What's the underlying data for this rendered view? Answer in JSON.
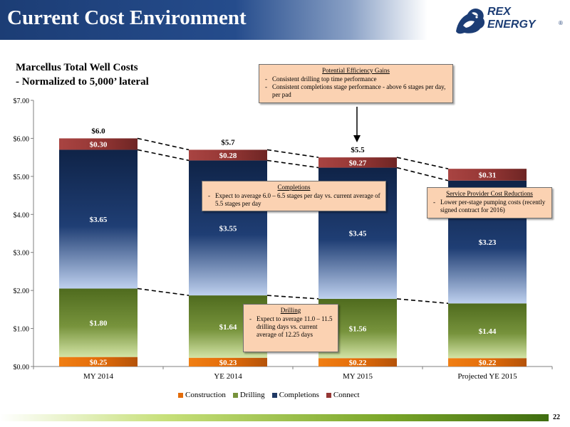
{
  "header": {
    "title": "Current Cost Environment",
    "logo_text": "REX ENERGY",
    "logo_mark": "®"
  },
  "chart_subtitle": [
    "Marcellus Total Well Costs",
    "- Normalized to 5,000’ lateral"
  ],
  "chart_data": {
    "type": "bar",
    "stacked": true,
    "categories": [
      "MY 2014",
      "YE 2014",
      "MY 2015",
      "Projected YE 2015"
    ],
    "series": [
      {
        "name": "Construction",
        "values": [
          0.25,
          0.23,
          0.22,
          0.22
        ],
        "labels": [
          "$0.25",
          "$0.23",
          "$0.22",
          "$0.22"
        ],
        "color": "#e36c0a"
      },
      {
        "name": "Drilling",
        "values": [
          1.8,
          1.64,
          1.56,
          1.44
        ],
        "labels": [
          "$1.80",
          "$1.64",
          "$1.56",
          "$1.44"
        ],
        "color": "#77933c"
      },
      {
        "name": "Completions",
        "values": [
          3.65,
          3.55,
          3.45,
          3.23
        ],
        "labels": [
          "$3.65",
          "$3.55",
          "$3.45",
          "$3.23"
        ],
        "color": "#1f3864"
      },
      {
        "name": "Connect",
        "values": [
          0.3,
          0.28,
          0.27,
          0.31
        ],
        "labels": [
          "$0.30",
          "$0.28",
          "$0.27",
          "$0.31"
        ],
        "color": "#953735"
      }
    ],
    "totals": [
      "$6.0",
      "$5.7",
      "$5.5",
      ""
    ],
    "ylim": [
      0,
      7
    ],
    "yticks": [
      "$0.00",
      "$1.00",
      "$2.00",
      "$3.00",
      "$4.00",
      "$5.00",
      "$6.00",
      "$7.00"
    ],
    "legend_position": "bottom",
    "grid": false
  },
  "callouts": {
    "efficiency": {
      "title": "Potential Efficiency Gains",
      "items": [
        "Consistent drilling top time performance",
        "Consistent completions stage performance  - above 6 stages per day, per pad"
      ]
    },
    "completions": {
      "title": "Completions",
      "items": [
        "Expect to average 6.0 – 6.5 stages per day vs. current average of 5.5 stages per day"
      ]
    },
    "service": {
      "title": "Service Provider Cost Reductions",
      "items": [
        "Lower per-stage pumping costs (recently signed contract for 2016)"
      ]
    },
    "drilling": {
      "title": "Drilling",
      "items": [
        "Expect to average 11.0 – 11.5 drilling days vs. current average of 12.25 days"
      ]
    }
  },
  "footer": {
    "page_number": "22"
  }
}
